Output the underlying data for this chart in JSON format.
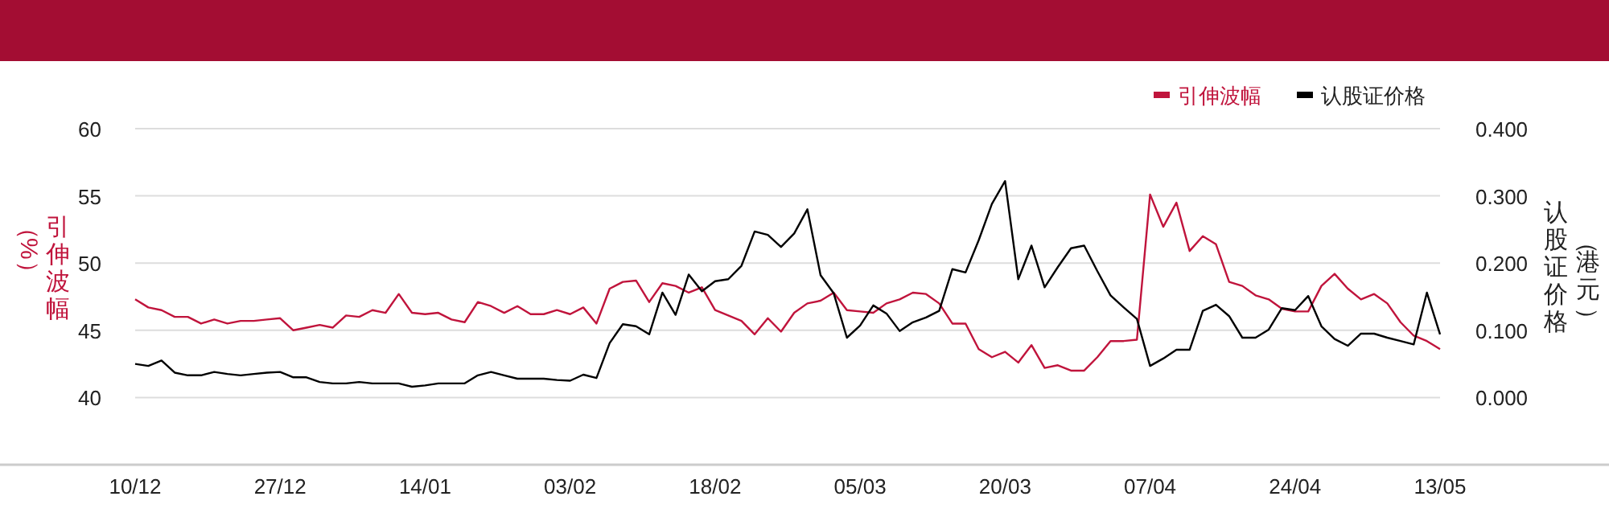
{
  "chart_data": {
    "type": "line",
    "categories": [
      "10/12",
      null,
      null,
      null,
      null,
      null,
      null,
      null,
      null,
      null,
      null,
      "27/12",
      null,
      null,
      null,
      null,
      null,
      null,
      null,
      null,
      null,
      null,
      "14/01",
      null,
      null,
      null,
      null,
      null,
      null,
      null,
      null,
      null,
      null,
      "03/02",
      null,
      null,
      null,
      null,
      null,
      null,
      null,
      null,
      null,
      null,
      "18/02",
      null,
      null,
      null,
      null,
      null,
      null,
      null,
      null,
      null,
      null,
      "05/03",
      null,
      null,
      null,
      null,
      null,
      null,
      null,
      null,
      null,
      null,
      "20/03",
      null,
      null,
      null,
      null,
      null,
      null,
      null,
      null,
      null,
      null,
      "07/04",
      null,
      null,
      null,
      null,
      null,
      null,
      null,
      null,
      null,
      null,
      "24/04",
      null,
      null,
      null,
      null,
      null,
      null,
      null,
      null,
      null,
      null,
      "13/05"
    ],
    "series": [
      {
        "name": "引伸波幅",
        "color": "#c0143c",
        "values": [
          47.3,
          46.7,
          46.5,
          46.0,
          46.0,
          45.5,
          45.8,
          45.5,
          45.7,
          45.7,
          45.8,
          45.9,
          45.0,
          45.2,
          45.4,
          45.2,
          46.1,
          46.0,
          46.5,
          46.3,
          47.7,
          46.3,
          46.2,
          46.3,
          45.8,
          45.6,
          47.1,
          46.8,
          46.3,
          46.8,
          46.2,
          46.2,
          46.5,
          46.2,
          46.7,
          45.5,
          48.1,
          48.6,
          48.7,
          47.1,
          48.5,
          48.3,
          47.8,
          48.2,
          46.5,
          46.1,
          45.7,
          44.7,
          45.9,
          44.9,
          46.3,
          47.0,
          47.2,
          47.8,
          46.5,
          46.4,
          46.3,
          47.0,
          47.3,
          47.8,
          47.7,
          47.0,
          45.5,
          45.5,
          43.6,
          43.0,
          43.4,
          42.6,
          43.9,
          42.2,
          42.4,
          42.0,
          42.0,
          43.0,
          44.2,
          44.2,
          44.3,
          55.1,
          52.7,
          54.5,
          50.9,
          52.0,
          51.4,
          48.6,
          48.3,
          47.6,
          47.3,
          46.6,
          46.4,
          46.4,
          48.3,
          49.2,
          48.1,
          47.3,
          47.7,
          47.0,
          45.6,
          44.6,
          44.2,
          43.6
        ]
      },
      {
        "name": "认股证价格",
        "color": "#000000",
        "axis": "y2",
        "values": [
          0.05,
          0.047,
          0.055,
          0.037,
          0.033,
          0.033,
          0.038,
          0.035,
          0.033,
          0.035,
          0.037,
          0.038,
          0.03,
          0.03,
          0.023,
          0.021,
          0.021,
          0.023,
          0.021,
          0.021,
          0.021,
          0.016,
          0.018,
          0.021,
          0.021,
          0.021,
          0.033,
          0.038,
          0.033,
          0.028,
          0.028,
          0.028,
          0.026,
          0.025,
          0.034,
          0.029,
          0.081,
          0.109,
          0.106,
          0.094,
          0.156,
          0.123,
          0.183,
          0.158,
          0.173,
          0.176,
          0.196,
          0.247,
          0.242,
          0.224,
          0.244,
          0.28,
          0.182,
          0.155,
          0.089,
          0.107,
          0.137,
          0.125,
          0.099,
          0.112,
          0.119,
          0.129,
          0.191,
          0.186,
          0.234,
          0.288,
          0.322,
          0.176,
          0.226,
          0.164,
          0.194,
          0.222,
          0.226,
          0.188,
          0.152,
          0.134,
          0.117,
          0.047,
          0.058,
          0.071,
          0.071,
          0.129,
          0.138,
          0.121,
          0.089,
          0.089,
          0.101,
          0.133,
          0.13,
          0.151,
          0.106,
          0.087,
          0.077,
          0.095,
          0.095,
          0.089,
          0.084,
          0.079,
          0.156,
          0.094
        ]
      }
    ],
    "ylabel": "引伸波幅（%）",
    "y2label": "认股证价格（港元）",
    "ylim": [
      35,
      60
    ],
    "yticks": [
      40,
      45,
      50,
      55,
      60
    ],
    "y2lim": [
      -0.1,
      0.4
    ],
    "y2ticks": [
      {
        "value": 0,
        "label": "0.000"
      },
      {
        "value": 0.1,
        "label": "0.100"
      },
      {
        "value": 0.2,
        "label": "0.200"
      },
      {
        "value": 0.3,
        "label": "0.300"
      },
      {
        "value": 0.4,
        "label": "0.400"
      }
    ],
    "grid": "y",
    "legend": "top right"
  }
}
